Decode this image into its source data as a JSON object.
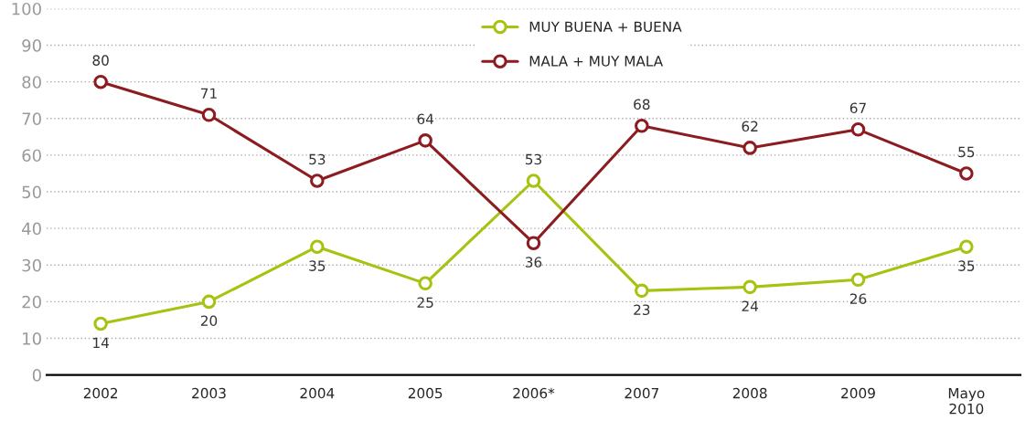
{
  "chart_data": {
    "type": "line",
    "categories": [
      "2002",
      "2003",
      "2004",
      "2005",
      "2006*",
      "2007",
      "2008",
      "2009",
      "Mayo\n2010"
    ],
    "series": [
      {
        "name": "MUY BUENA + BUENA",
        "color": "#a6c312",
        "values": [
          14,
          20,
          35,
          25,
          53,
          23,
          24,
          26,
          35
        ]
      },
      {
        "name": "MALA + MUY MALA",
        "color": "#8c1c1f",
        "values": [
          80,
          71,
          53,
          64,
          36,
          68,
          62,
          67,
          55
        ]
      }
    ],
    "ylim": [
      0,
      100
    ],
    "yticks": [
      0,
      10,
      20,
      30,
      40,
      50,
      60,
      70,
      80,
      90,
      100
    ],
    "grid": "y",
    "legend": "top",
    "marker": "circle",
    "line_style": "solid",
    "data_labels": true
  }
}
